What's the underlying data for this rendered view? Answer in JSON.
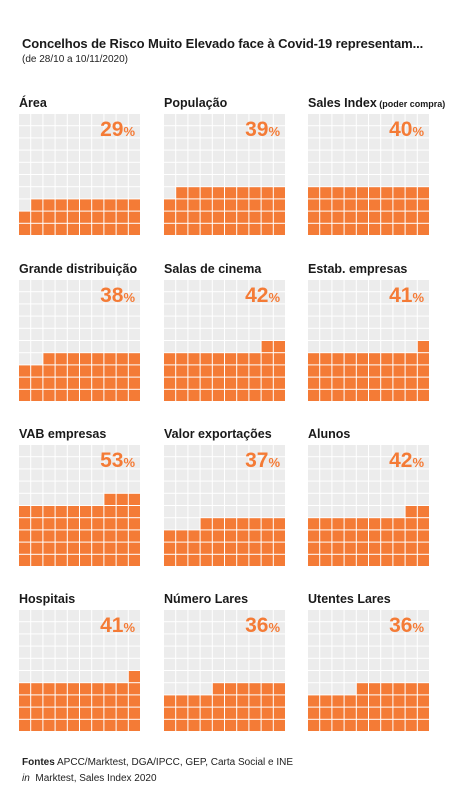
{
  "title": "Concelhos de Risco Muito Elevado face à Covid-19 representam...",
  "subtitle": "(de 28/10 a 10/11/2020)",
  "colors": {
    "filled": "#f47b36",
    "empty": "#ececec",
    "pct_text": "#f47b36"
  },
  "footer": {
    "sources_label": "Fontes",
    "sources_text": "APCC/Marktest, DGA/IPCC, GEP, Carta Social e INE",
    "in_label": "in",
    "in_text": "Marktest, Sales Index 2020"
  },
  "chart_data": {
    "type": "waffle",
    "grid": {
      "rows": 10,
      "cols": 10
    },
    "unit": "%",
    "panels": [
      {
        "label": "Área",
        "label_sub": "",
        "value": 29
      },
      {
        "label": "População",
        "label_sub": "",
        "value": 39
      },
      {
        "label": "Sales Index",
        "label_sub": "(poder compra)",
        "value": 40
      },
      {
        "label": "Grande distribuição",
        "label_sub": "",
        "value": 38
      },
      {
        "label": "Salas de cinema",
        "label_sub": "",
        "value": 42
      },
      {
        "label": "Estab. empresas",
        "label_sub": "",
        "value": 41
      },
      {
        "label": "VAB empresas",
        "label_sub": "",
        "value": 53
      },
      {
        "label": "Valor exportações",
        "label_sub": "",
        "value": 37
      },
      {
        "label": "Alunos",
        "label_sub": "",
        "value": 42
      },
      {
        "label": "Hospitais",
        "label_sub": "",
        "value": 41
      },
      {
        "label": "Número Lares",
        "label_sub": "",
        "value": 36
      },
      {
        "label": "Utentes Lares",
        "label_sub": "",
        "value": 36
      }
    ]
  }
}
